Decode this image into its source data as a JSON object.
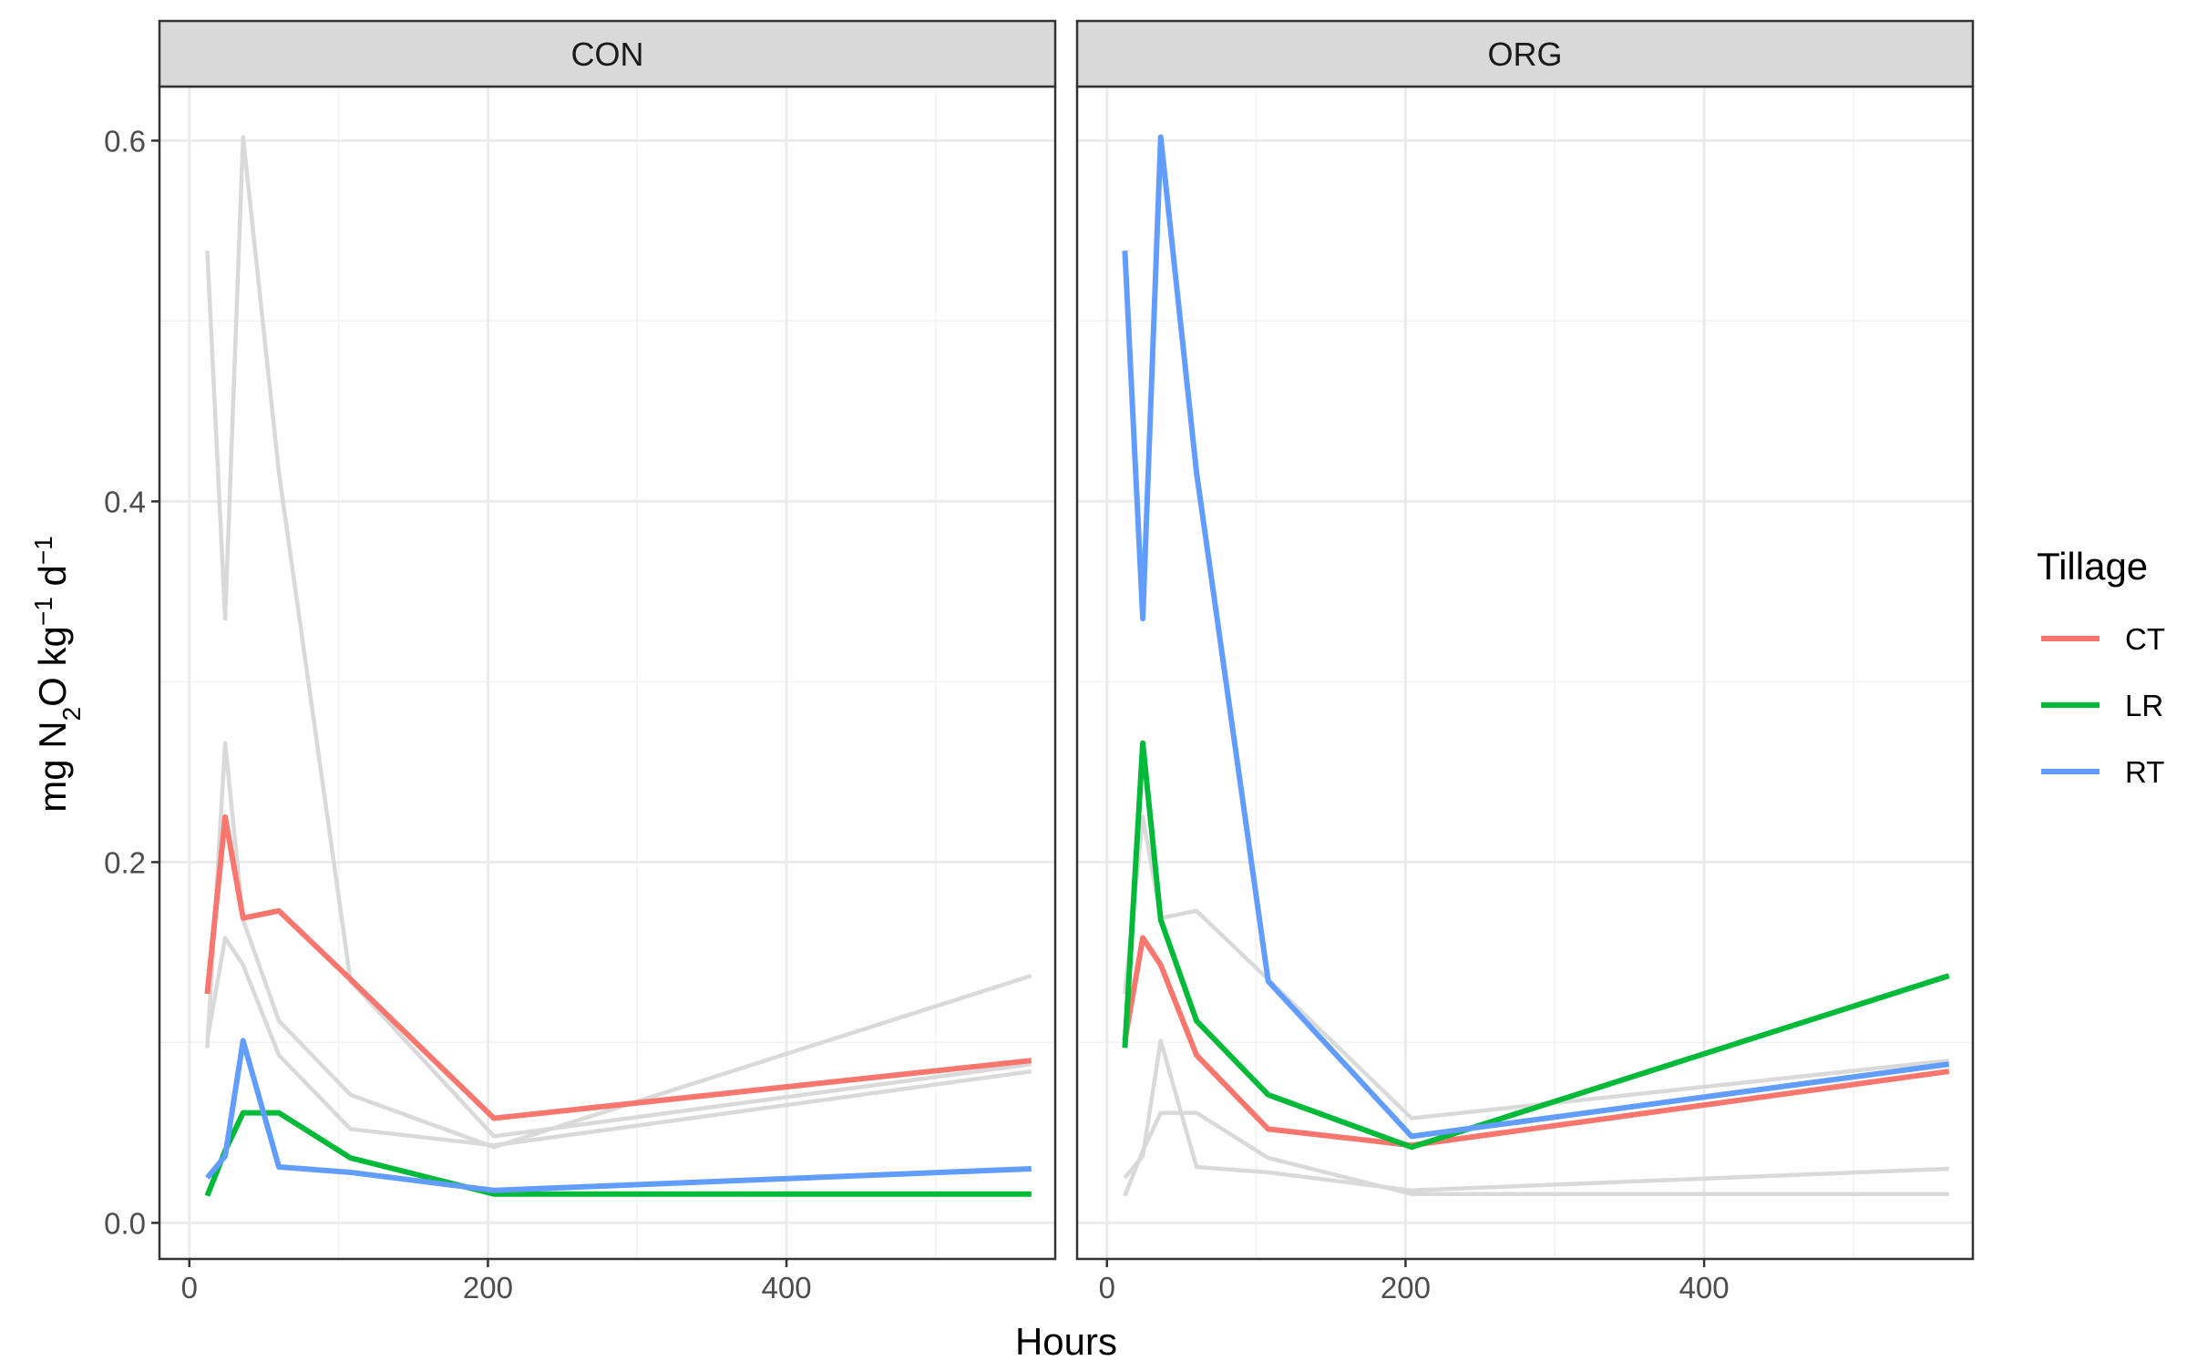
{
  "chart_data": {
    "type": "line",
    "xlabel": "Hours",
    "ylabel_parts": {
      "a": "mg N",
      "b": "2",
      "c": "O kg",
      "d": "−1",
      "e": " d",
      "f": "−1"
    },
    "xlim": [
      -20,
      580
    ],
    "ylim": [
      -0.02,
      0.63
    ],
    "x_ticks": [
      0,
      200,
      400
    ],
    "x_tick_labels": [
      "0",
      "200",
      "400"
    ],
    "y_ticks": [
      0.0,
      0.2,
      0.4,
      0.6
    ],
    "y_tick_labels": [
      "0.0",
      "0.2",
      "0.4",
      "0.6"
    ],
    "grid": true,
    "legend": {
      "title": "Tillage",
      "position": "right",
      "entries": [
        "CT",
        "LR",
        "RT"
      ]
    },
    "colors": {
      "CT": "#F8766D",
      "LR": "#00BA38",
      "RT": "#619CFF",
      "background_series": "#D9D9D9",
      "strip": "#D9D9D9"
    },
    "panels": [
      {
        "strip": "CON",
        "series": [
          {
            "name": "CT",
            "x": [
              12,
              24,
              36,
              60,
              108,
              204,
              564
            ],
            "y": [
              0.127,
              0.225,
              0.169,
              0.173,
              0.135,
              0.058,
              0.09
            ]
          },
          {
            "name": "LR",
            "x": [
              12,
              24,
              36,
              60,
              108,
              204,
              564
            ],
            "y": [
              0.015,
              0.04,
              0.061,
              0.061,
              0.036,
              0.016,
              0.016
            ]
          },
          {
            "name": "RT",
            "x": [
              12,
              24,
              36,
              60,
              108,
              204,
              564
            ],
            "y": [
              0.025,
              0.037,
              0.101,
              0.031,
              0.028,
              0.018,
              0.03
            ]
          }
        ]
      },
      {
        "strip": "ORG",
        "series": [
          {
            "name": "CT",
            "x": [
              12,
              24,
              36,
              60,
              108,
              204,
              564
            ],
            "y": [
              0.101,
              0.158,
              0.143,
              0.093,
              0.052,
              0.043,
              0.084
            ]
          },
          {
            "name": "LR",
            "x": [
              12,
              24,
              36,
              60,
              108,
              204,
              564
            ],
            "y": [
              0.097,
              0.266,
              0.168,
              0.112,
              0.071,
              0.042,
              0.137
            ]
          },
          {
            "name": "RT",
            "x": [
              12,
              24,
              36,
              60,
              108,
              204,
              564
            ],
            "y": [
              0.539,
              0.335,
              0.602,
              0.416,
              0.134,
              0.048,
              0.088
            ]
          }
        ]
      }
    ]
  }
}
